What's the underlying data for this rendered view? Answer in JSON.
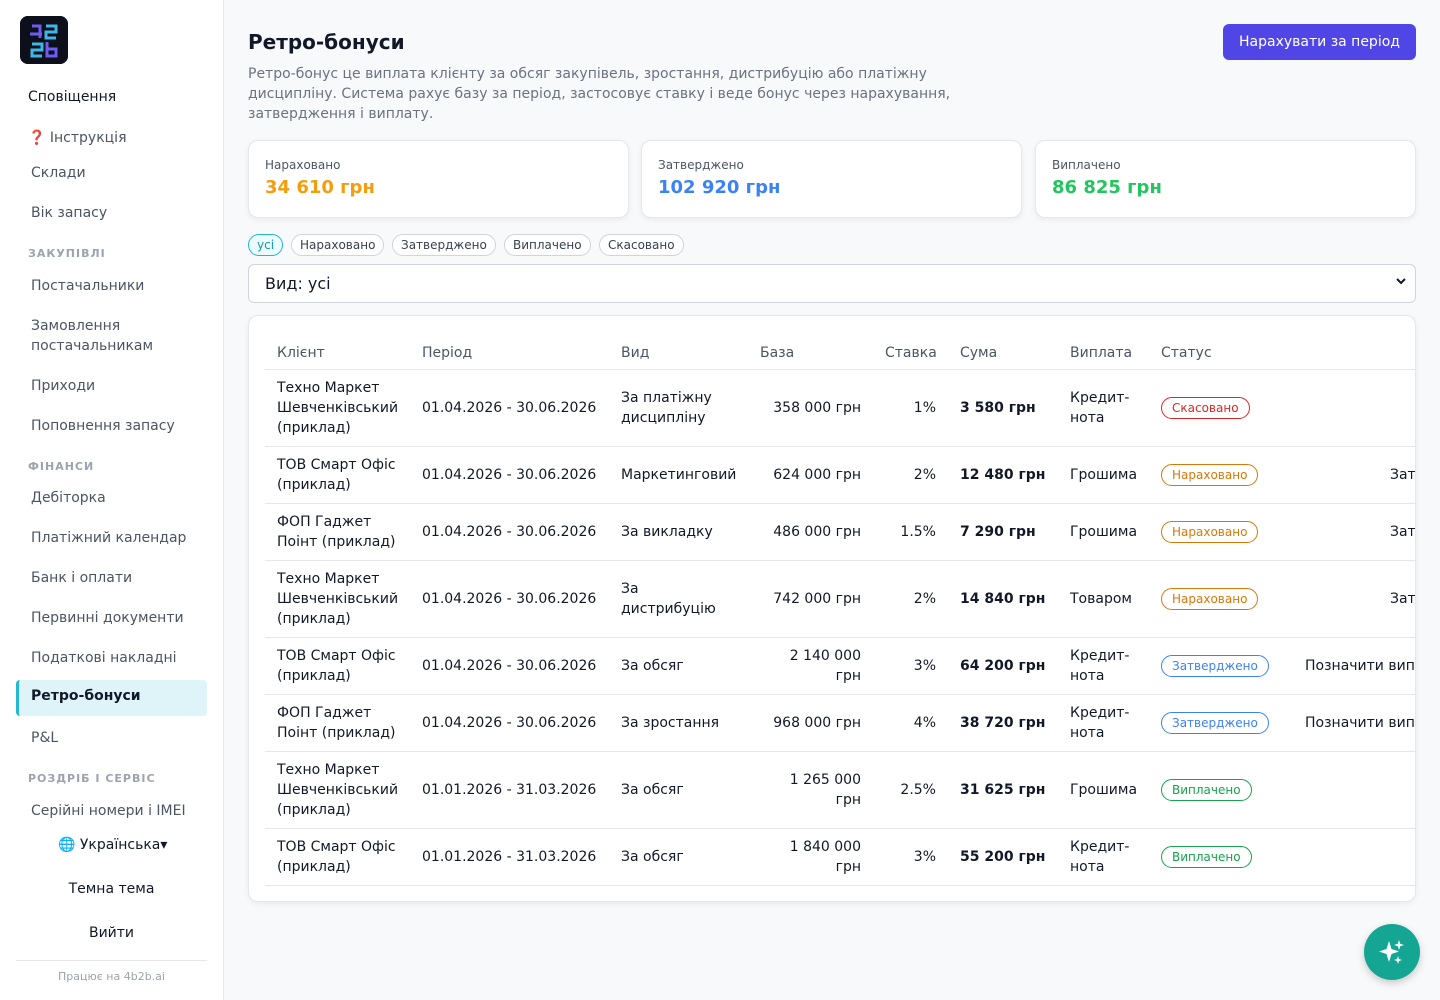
{
  "sidebar": {
    "notifications": "Сповіщення",
    "instruction": "❓ Інструкція",
    "items_top": [
      "Склади",
      "Вік запасу"
    ],
    "section_purchases": "ЗАКУПІВЛІ",
    "items_purchases": [
      "Постачальники",
      "Замовлення постачальникам",
      "Приходи",
      "Поповнення запасу"
    ],
    "section_finance": "ФІНАНСИ",
    "items_finance": [
      "Дебіторка",
      "Платіжний календар",
      "Банк і оплати",
      "Первинні документи",
      "Податкові накладні",
      "Ретро-бонуси",
      "P&L"
    ],
    "section_retail": "РОЗДРІБ І СЕРВІС",
    "items_retail": [
      "Серійні номери і IMEI"
    ],
    "language": "🌐 Українська▾",
    "theme": "Темна тема",
    "logout": "Вийти",
    "powered": "Працює на 4b2b.ai"
  },
  "page": {
    "title": "Ретро-бонуси",
    "action_button": "Нарахувати за період",
    "description": "Ретро-бонус це виплата клієнту за обсяг закупівель, зростання, дистрибуцію або платіжну дисципліну. Система рахує базу за період, застосовує ставку і веде бонус через нарахування, затвердження і виплату."
  },
  "cards": [
    {
      "label": "Нараховано",
      "value": "34 610 грн",
      "color": "#f59e0b"
    },
    {
      "label": "Затверджено",
      "value": "102 920 грн",
      "color": "#3b82f6"
    },
    {
      "label": "Виплачено",
      "value": "86 825 грн",
      "color": "#22c55e"
    }
  ],
  "filters": [
    "усі",
    "Нараховано",
    "Затверджено",
    "Виплачено",
    "Скасовано"
  ],
  "type_select": {
    "value": "Вид: усі"
  },
  "table": {
    "columns": [
      "Клієнт",
      "Період",
      "Вид",
      "База",
      "Ставка",
      "Сума",
      "Виплата",
      "Статус",
      ""
    ],
    "rows": [
      {
        "client": "Техно Маркет Шевченківський (приклад)",
        "period": "01.04.2026 - 30.06.2026",
        "type": "За платіжну дисципліну",
        "base": "358 000 грн",
        "rate": "1%",
        "sum": "3 580 грн",
        "payout": "Кредит-нота",
        "status": "Скасовано",
        "status_color": "#dc2626",
        "action": ""
      },
      {
        "client": "ТОВ Смарт Офіс (приклад)",
        "period": "01.04.2026 - 30.06.2026",
        "type": "Маркетинговий",
        "base": "624 000 грн",
        "rate": "2%",
        "sum": "12 480 грн",
        "payout": "Грошима",
        "status": "Нараховано",
        "status_color": "#d97706",
        "action": "Затвердити"
      },
      {
        "client": "ФОП Гаджет Поінт (приклад)",
        "period": "01.04.2026 - 30.06.2026",
        "type": "За викладку",
        "base": "486 000 грн",
        "rate": "1.5%",
        "sum": "7 290 грн",
        "payout": "Грошима",
        "status": "Нараховано",
        "status_color": "#d97706",
        "action": "Затвердити"
      },
      {
        "client": "Техно Маркет Шевченківський (приклад)",
        "period": "01.04.2026 - 30.06.2026",
        "type": "За дистрибуцію",
        "base": "742 000 грн",
        "rate": "2%",
        "sum": "14 840 грн",
        "payout": "Товаром",
        "status": "Нараховано",
        "status_color": "#d97706",
        "action": "Затвердити"
      },
      {
        "client": "ТОВ Смарт Офіс (приклад)",
        "period": "01.04.2026 - 30.06.2026",
        "type": "За обсяг",
        "base": "2 140 000 грн",
        "rate": "3%",
        "sum": "64 200 грн",
        "payout": "Кредит-нота",
        "status": "Затверджено",
        "status_color": "#3b82f6",
        "action": "Позначити виплату"
      },
      {
        "client": "ФОП Гаджет Поінт (приклад)",
        "period": "01.04.2026 - 30.06.2026",
        "type": "За зростання",
        "base": "968 000 грн",
        "rate": "4%",
        "sum": "38 720 грн",
        "payout": "Кредит-нота",
        "status": "Затверджено",
        "status_color": "#3b82f6",
        "action": "Позначити виплату"
      },
      {
        "client": "Техно Маркет Шевченківський (приклад)",
        "period": "01.01.2026 - 31.03.2026",
        "type": "За обсяг",
        "base": "1 265 000 грн",
        "rate": "2.5%",
        "sum": "31 625 грн",
        "payout": "Грошима",
        "status": "Виплачено",
        "status_color": "#16a34a",
        "action": ""
      },
      {
        "client": "ТОВ Смарт Офіс (приклад)",
        "period": "01.01.2026 - 31.03.2026",
        "type": "За обсяг",
        "base": "1 840 000 грн",
        "rate": "3%",
        "sum": "55 200 грн",
        "payout": "Кредит-нота",
        "status": "Виплачено",
        "status_color": "#16a34a",
        "action": ""
      }
    ]
  },
  "fab_icon": "sparkles-icon"
}
